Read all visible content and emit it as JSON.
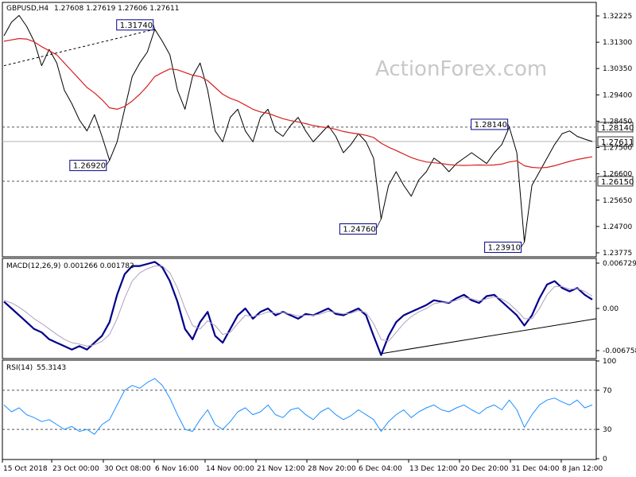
{
  "header": {
    "symbol": "GBPUSD,H4",
    "ohlc": "1.27608 1.27619 1.27606 1.27611",
    "macd_label": "MACD(12,26,9)",
    "macd_values": "0.001266 0.001782",
    "rsi_label": "RSI(14)",
    "rsi_value": "55.3143",
    "watermark": "ActionForex.com"
  },
  "colors": {
    "price": "#000000",
    "ma": "#d62020",
    "macd": "#00008b",
    "signal": "#b0a0c0",
    "rsi": "#1e90ff",
    "label_border": "#00008b"
  },
  "chart_data": [
    {
      "type": "line",
      "title": "",
      "y_ticks": [
        "1.32225",
        "1.31300",
        "1.30350",
        "1.29400",
        "1.28450",
        "1.27500",
        "1.26600",
        "1.25650",
        "1.24700",
        "1.23775"
      ],
      "ylim": [
        1.234,
        1.327
      ],
      "x_ticks": [
        "15 Oct 2018",
        "23 Oct 00:00",
        "30 Oct 08:00",
        "6 Nov 16:00",
        "14 Nov 00:00",
        "21 Nov 12:00",
        "28 Nov 20:00",
        "6 Dec 04:00",
        "13 Dec 12:00",
        "20 Dec 20:00",
        "31 Dec 04:00",
        "8 Jan 12:00"
      ],
      "series": [
        {
          "values": [
            1.315,
            1.32,
            1.3225,
            1.3185,
            1.313,
            1.304,
            1.31,
            1.305,
            1.295,
            1.29,
            1.284,
            1.28,
            1.286,
            1.278,
            1.2692,
            1.276,
            1.288,
            1.3,
            1.305,
            1.309,
            1.3174,
            1.313,
            1.308,
            1.295,
            1.288,
            1.3,
            1.305,
            1.295,
            1.28,
            1.276,
            1.285,
            1.288,
            1.28,
            1.276,
            1.285,
            1.288,
            1.28,
            1.278,
            1.282,
            1.285,
            1.28,
            1.276,
            1.279,
            1.282,
            1.278,
            1.272,
            1.275,
            1.279,
            1.276,
            1.27,
            1.2476,
            1.26,
            1.265,
            1.26,
            1.256,
            1.262,
            1.265,
            1.27,
            1.268,
            1.265,
            1.268,
            1.27,
            1.272,
            1.27,
            1.268,
            1.272,
            1.275,
            1.2814,
            1.272,
            1.2391,
            1.26,
            1.265,
            1.27,
            1.275,
            1.279,
            1.28,
            1.278,
            1.277,
            1.2761
          ]
        },
        {
          "values": [
            1.313,
            1.3135,
            1.314,
            1.3138,
            1.3128,
            1.311,
            1.3095,
            1.308,
            1.305,
            1.302,
            1.299,
            1.296,
            1.294,
            1.2915,
            1.2885,
            1.288,
            1.289,
            1.291,
            1.2935,
            1.2965,
            1.3,
            1.3015,
            1.3028,
            1.3025,
            1.3015,
            1.3005,
            1.3,
            1.2985,
            1.296,
            1.2935,
            1.292,
            1.291,
            1.2895,
            1.288,
            1.287,
            1.2865,
            1.2855,
            1.2845,
            1.2838,
            1.2833,
            1.2827,
            1.282,
            1.2815,
            1.2812,
            1.2806,
            1.2798,
            1.2793,
            1.2789,
            1.2784,
            1.2776,
            1.2755,
            1.274,
            1.2728,
            1.2715,
            1.2702,
            1.2693,
            1.2686,
            1.2683,
            1.268,
            1.2676,
            1.2674,
            1.2673,
            1.2674,
            1.2675,
            1.2674,
            1.2675,
            1.2678,
            1.2686,
            1.269,
            1.2672,
            1.2666,
            1.2664,
            1.2666,
            1.2672,
            1.268,
            1.2688,
            1.2695,
            1.27,
            1.2705
          ]
        }
      ],
      "reference_lines": [
        {
          "value": 1.2814,
          "label": "1.28140",
          "style": "dashed"
        },
        {
          "value": 1.2761,
          "label": "1.27611",
          "style": "solid"
        },
        {
          "value": 1.2615,
          "label": "1.26150",
          "style": "dashed"
        }
      ],
      "annotations": [
        {
          "label": "1.31740",
          "index": 20,
          "value": 1.3174
        },
        {
          "label": "1.26920",
          "index": 14,
          "value": 1.2692
        },
        {
          "label": "1.28140",
          "index": 67,
          "value": 1.2814
        },
        {
          "label": "1.24760",
          "index": 50,
          "value": 1.2476
        },
        {
          "label": "1.23910",
          "index": 69,
          "value": 1.2391
        }
      ],
      "trendline": {
        "from": {
          "index": 0,
          "value": 1.304
        },
        "to": {
          "index": 20,
          "value": 1.3174
        }
      }
    },
    {
      "type": "line",
      "title": "",
      "y_ticks": [
        "0.006729",
        "0.00",
        "-0.006758"
      ],
      "ylim": [
        -0.0072,
        0.0072
      ],
      "series": [
        {
          "values": [
            0.001,
            0.0,
            -0.001,
            -0.002,
            -0.003,
            -0.0035,
            -0.0045,
            -0.005,
            -0.0055,
            -0.006,
            -0.0055,
            -0.006,
            -0.005,
            -0.004,
            -0.002,
            0.002,
            0.005,
            0.0062,
            0.0062,
            0.0065,
            0.0068,
            0.006,
            0.004,
            0.001,
            -0.003,
            -0.0045,
            -0.002,
            -0.0005,
            -0.004,
            -0.005,
            -0.003,
            -0.001,
            0.0,
            -0.0015,
            -0.0005,
            0.0,
            -0.001,
            -0.0005,
            -0.001,
            -0.0015,
            -0.0008,
            -0.001,
            -0.0005,
            0.0,
            -0.0008,
            -0.001,
            -0.0005,
            0.0,
            -0.001,
            -0.004,
            -0.0068,
            -0.004,
            -0.002,
            -0.001,
            -0.0005,
            0.0,
            0.0005,
            0.0012,
            0.001,
            0.0008,
            0.0015,
            0.002,
            0.0012,
            0.0008,
            0.0018,
            0.002,
            0.001,
            0.0,
            -0.001,
            -0.0025,
            -0.001,
            0.0015,
            0.0035,
            0.004,
            0.003,
            0.0025,
            0.003,
            0.002,
            0.0013
          ]
        },
        {
          "values": [
            0.0012,
            0.0008,
            0.0002,
            -0.0006,
            -0.0015,
            -0.0022,
            -0.003,
            -0.0038,
            -0.0045,
            -0.005,
            -0.0052,
            -0.0055,
            -0.0053,
            -0.0048,
            -0.0038,
            -0.0015,
            0.0015,
            0.004,
            0.0052,
            0.0058,
            0.0062,
            0.0062,
            0.0052,
            0.003,
            0.0,
            -0.0025,
            -0.003,
            -0.0018,
            -0.0025,
            -0.0038,
            -0.0035,
            -0.0022,
            -0.001,
            -0.0012,
            -0.0009,
            -0.0005,
            -0.0007,
            -0.0006,
            -0.0008,
            -0.0011,
            -0.001,
            -0.001,
            -0.0008,
            -0.0004,
            -0.0006,
            -0.0008,
            -0.0007,
            -0.0003,
            -0.0006,
            -0.0022,
            -0.0045,
            -0.0048,
            -0.0035,
            -0.0022,
            -0.0012,
            -0.0005,
            0.0,
            0.0007,
            0.0009,
            0.0009,
            0.0012,
            0.0016,
            0.0014,
            0.0011,
            0.0014,
            0.0017,
            0.0014,
            0.0007,
            -0.0003,
            -0.0015,
            -0.0015,
            0.0,
            0.002,
            0.0032,
            0.0032,
            0.0028,
            0.0029,
            0.0025,
            0.0018
          ]
        }
      ],
      "trendline": {
        "from": {
          "index": 50,
          "value": -0.0066
        },
        "to": {
          "index": 78,
          "value": -0.0015
        }
      }
    },
    {
      "type": "line",
      "title": "",
      "y_ticks": [
        "100",
        "70",
        "30",
        "0"
      ],
      "ylim": [
        0,
        100
      ],
      "reference_lines": [
        {
          "value": 70,
          "style": "dashed"
        },
        {
          "value": 30,
          "style": "dashed"
        }
      ],
      "series": [
        {
          "values": [
            55,
            48,
            52,
            45,
            42,
            38,
            40,
            35,
            30,
            33,
            28,
            30,
            25,
            35,
            40,
            55,
            70,
            75,
            72,
            78,
            82,
            75,
            62,
            45,
            30,
            28,
            40,
            50,
            35,
            30,
            38,
            48,
            52,
            45,
            48,
            55,
            45,
            42,
            50,
            52,
            45,
            40,
            48,
            52,
            45,
            40,
            44,
            50,
            45,
            40,
            28,
            38,
            45,
            50,
            42,
            48,
            52,
            55,
            50,
            48,
            52,
            55,
            50,
            46,
            52,
            55,
            50,
            60,
            50,
            32,
            45,
            55,
            60,
            62,
            58,
            55,
            60,
            52,
            55
          ]
        }
      ]
    }
  ]
}
